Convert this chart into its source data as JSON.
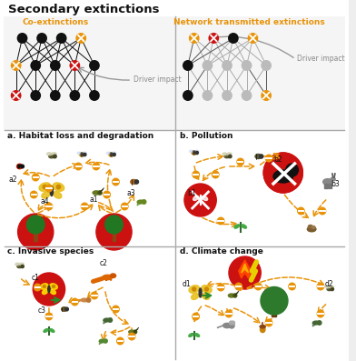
{
  "title": "Secondary extinctions",
  "orange": "#e8940a",
  "red": "#cc1111",
  "gray_light": "#bbbbbb",
  "gray_med": "#888888",
  "black": "#111111",
  "white": "#ffffff",
  "green": "#2a8a2a",
  "yellow_green": "#aacc00",
  "brown": "#8B4513",
  "panel_border": "#aaaaaa",
  "co_ext_title": "Co-extinctions",
  "net_ext_title": "Network transmitted extinctions",
  "panel_a_title": "a. Habitat loss and degradation",
  "panel_b_title": "b. Pollution",
  "panel_c_title": "c. Invasive species",
  "panel_d_title": "d. Climate change",
  "driver_impact": "Driver impact",
  "figw": 3.92,
  "figh": 3.97,
  "dpi": 100
}
